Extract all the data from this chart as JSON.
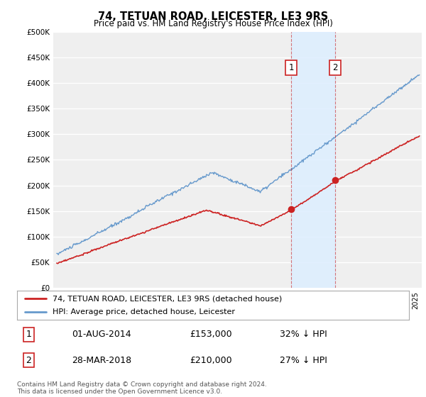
{
  "title": "74, TETUAN ROAD, LEICESTER, LE3 9RS",
  "subtitle": "Price paid vs. HM Land Registry's House Price Index (HPI)",
  "ylim": [
    0,
    500000
  ],
  "yticks": [
    0,
    50000,
    100000,
    150000,
    200000,
    250000,
    300000,
    350000,
    400000,
    450000,
    500000
  ],
  "ytick_labels": [
    "£0",
    "£50K",
    "£100K",
    "£150K",
    "£200K",
    "£250K",
    "£300K",
    "£350K",
    "£400K",
    "£450K",
    "£500K"
  ],
  "background_color": "#ffffff",
  "plot_bg_color": "#efefef",
  "hpi_color": "#6699cc",
  "price_color": "#cc2222",
  "highlight_bg": "#ddeeff",
  "t1_year": 2014.58,
  "t2_year": 2018.24,
  "t1_price": 153000,
  "t2_price": 210000,
  "transaction1_date": "01-AUG-2014",
  "transaction1_price": "£153,000",
  "transaction1_info": "32% ↓ HPI",
  "transaction2_date": "28-MAR-2018",
  "transaction2_price": "£210,000",
  "transaction2_info": "27% ↓ HPI",
  "footer": "Contains HM Land Registry data © Crown copyright and database right 2024.\nThis data is licensed under the Open Government Licence v3.0.",
  "legend_line1": "74, TETUAN ROAD, LEICESTER, LE3 9RS (detached house)",
  "legend_line2": "HPI: Average price, detached house, Leicester"
}
